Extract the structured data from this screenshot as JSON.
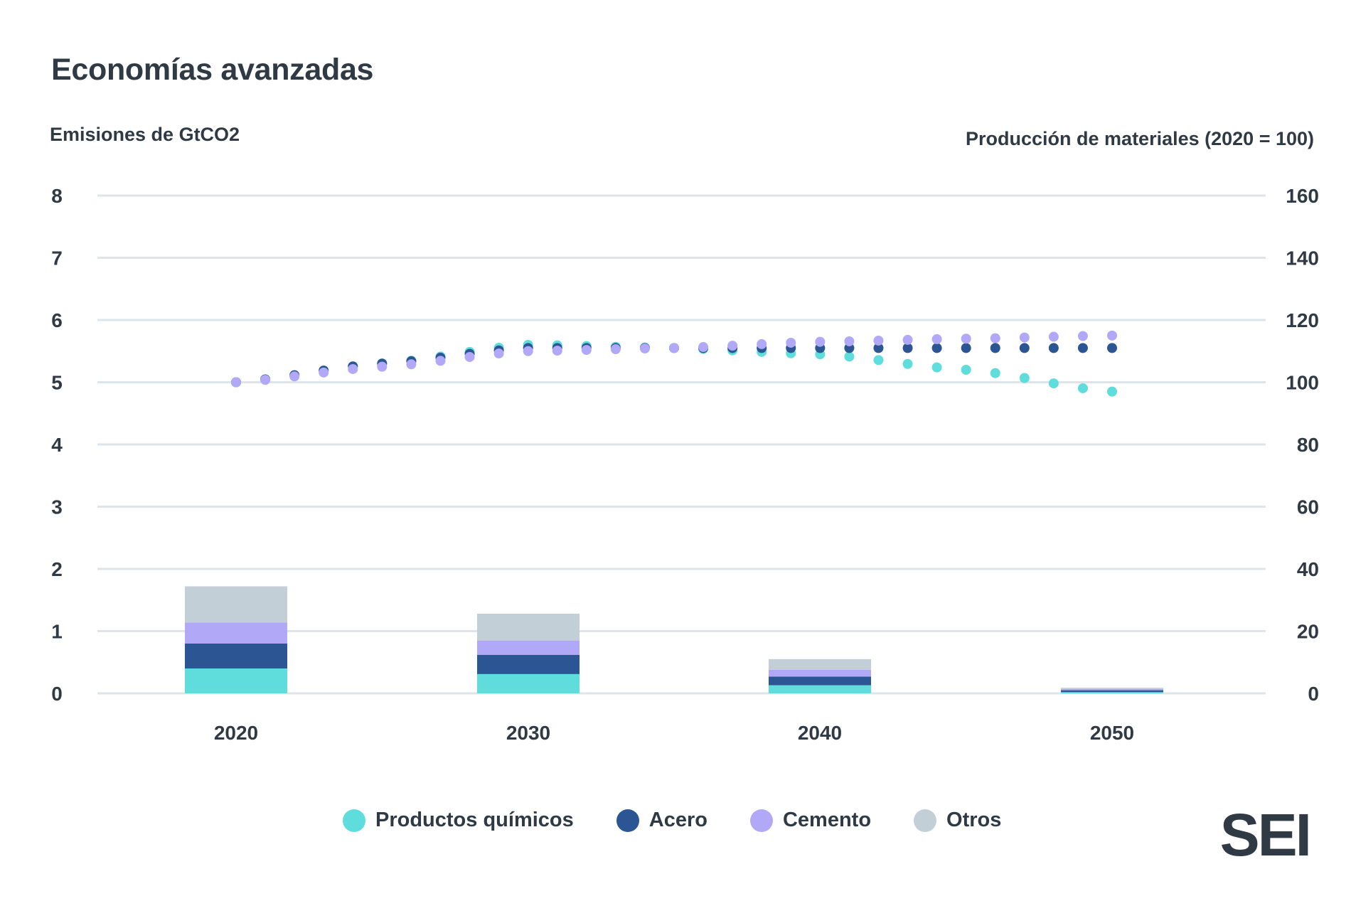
{
  "title": "Economías avanzadas",
  "brand": "SEI",
  "colors": {
    "Productos químicos": "#5fdcdc",
    "Acero": "#2c5594",
    "Cemento": "#b1a9f8",
    "Otros": "#c3cfd6",
    "grid": "#dfe4e8",
    "text": "#2f3a45"
  },
  "chart_data": {
    "type": "bar",
    "title": "Economías avanzadas",
    "ylabel": "Emisiones de GtCO2",
    "y2label": "Producción de materiales (2020 = 100)",
    "ylim": [
      0,
      8
    ],
    "y2lim": [
      0,
      160
    ],
    "yticks": [
      0,
      1,
      2,
      3,
      4,
      5,
      6,
      7,
      8
    ],
    "y2ticks": [
      0,
      20,
      40,
      60,
      80,
      100,
      120,
      140,
      160
    ],
    "grid": true,
    "legend_position": "bottom",
    "categories": [
      "2020",
      "2030",
      "2040",
      "2050"
    ],
    "bar_series": [
      {
        "name": "Productos químicos",
        "values": [
          0.4,
          0.31,
          0.13,
          0.02
        ]
      },
      {
        "name": "Acero",
        "values": [
          0.4,
          0.31,
          0.14,
          0.03
        ]
      },
      {
        "name": "Cemento",
        "values": [
          0.34,
          0.23,
          0.11,
          0.02
        ]
      },
      {
        "name": "Otros",
        "values": [
          0.58,
          0.43,
          0.17,
          0.02
        ]
      }
    ],
    "line_series": [
      {
        "name": "Productos químicos",
        "axis": "right",
        "x": [
          2020,
          2025,
          2030,
          2035,
          2040,
          2045,
          2050
        ],
        "values": [
          100,
          106,
          112,
          111,
          109,
          104,
          97
        ]
      },
      {
        "name": "Acero",
        "axis": "right",
        "x": [
          2020,
          2025,
          2030,
          2035,
          2040,
          2045,
          2050
        ],
        "values": [
          100,
          106,
          111,
          111,
          111,
          111,
          111
        ]
      },
      {
        "name": "Cemento",
        "axis": "right",
        "x": [
          2020,
          2025,
          2030,
          2035,
          2040,
          2045,
          2050
        ],
        "values": [
          100,
          105,
          110,
          111,
          113,
          114,
          115
        ]
      }
    ]
  }
}
